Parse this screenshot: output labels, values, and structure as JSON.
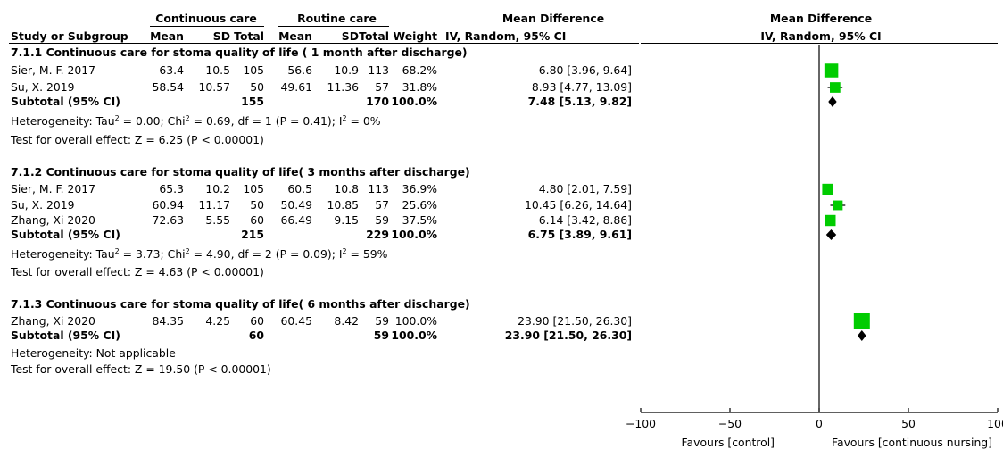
{
  "header": {
    "group1": "Continuous care",
    "group2": "Routine care",
    "md_text": "Mean Difference",
    "md_method": "IV, Random, 95% CI",
    "plot_md_text": "Mean Difference",
    "plot_md_method": "IV, Random, 95% CI",
    "study": "Study or Subgroup",
    "mean1": "Mean",
    "sd1": "SD",
    "total1": "Total",
    "mean2": "Mean",
    "sd2": "SD",
    "total2": "Total",
    "weight": "Weight"
  },
  "groups": [
    {
      "title": "7.1.1 Continuous care for stoma quality of life ( 1 month after discharge)",
      "studies": [
        {
          "name": "Sier, M. F. 2017",
          "mean1": "63.4",
          "sd1": "10.5",
          "total1": "105",
          "mean2": "56.6",
          "sd2": "10.9",
          "total2": "113",
          "weight": "68.2%",
          "ci": "6.80 [3.96, 9.64]"
        },
        {
          "name": "Su, X. 2019",
          "mean1": "58.54",
          "sd1": "10.57",
          "total1": "50",
          "mean2": "49.61",
          "sd2": "11.36",
          "total2": "57",
          "weight": "31.8%",
          "ci": "8.93 [4.77, 13.09]"
        }
      ],
      "subtotal": {
        "label": "Subtotal (95% CI)",
        "total1": "155",
        "total2": "170",
        "weight": "100.0%",
        "ci": "7.48 [5.13, 9.82]"
      },
      "heterogeneity": {
        "pre": "Heterogeneity: Tau",
        "a": " = 0.00; Chi",
        "b": " = 0.69, df = 1 (P = 0.41); I",
        "c": " = 0%",
        "sup": "2"
      },
      "overall": "Test for overall effect: Z = 6.25 (P < 0.00001)"
    },
    {
      "title": "7.1.2 Continuous care for stoma quality of life( 3 months after discharge)",
      "studies": [
        {
          "name": "Sier, M. F. 2017",
          "mean1": "65.3",
          "sd1": "10.2",
          "total1": "105",
          "mean2": "60.5",
          "sd2": "10.8",
          "total2": "113",
          "weight": "36.9%",
          "ci": "4.80 [2.01, 7.59]"
        },
        {
          "name": "Su, X. 2019",
          "mean1": "60.94",
          "sd1": "11.17",
          "total1": "50",
          "mean2": "50.49",
          "sd2": "10.85",
          "total2": "57",
          "weight": "25.6%",
          "ci": "10.45 [6.26, 14.64]"
        },
        {
          "name": "Zhang, Xi 2020",
          "mean1": "72.63",
          "sd1": "5.55",
          "total1": "60",
          "mean2": "66.49",
          "sd2": "9.15",
          "total2": "59",
          "weight": "37.5%",
          "ci": "6.14 [3.42, 8.86]"
        }
      ],
      "subtotal": {
        "label": "Subtotal (95% CI)",
        "total1": "215",
        "total2": "229",
        "weight": "100.0%",
        "ci": "6.75 [3.89, 9.61]"
      },
      "heterogeneity": {
        "pre": "Heterogeneity: Tau",
        "a": " = 3.73; Chi",
        "b": " = 4.90, df = 2 (P = 0.09); I",
        "c": " = 59%",
        "sup": "2"
      },
      "overall": "Test for overall effect: Z = 4.63 (P < 0.00001)"
    },
    {
      "title": "7.1.3 Continuous care for stoma quality of life( 6 months after discharge)",
      "studies": [
        {
          "name": "Zhang, Xi 2020",
          "mean1": "84.35",
          "sd1": "4.25",
          "total1": "60",
          "mean2": "60.45",
          "sd2": "8.42",
          "total2": "59",
          "weight": "100.0%",
          "ci": "23.90 [21.50, 26.30]"
        }
      ],
      "subtotal": {
        "label": "Subtotal (95% CI)",
        "total1": "60",
        "total2": "59",
        "weight": "100.0%",
        "ci": "23.90 [21.50, 26.30]"
      },
      "heterogeneity_text": "Heterogeneity: Not applicable",
      "overall": "Test for overall effect: Z = 19.50 (P < 0.00001)"
    }
  ],
  "chart_data": {
    "type": "forest",
    "xlim": [
      -100,
      100
    ],
    "xticks": [
      -100,
      -50,
      0,
      50,
      100
    ],
    "xtick_labels": [
      "−100",
      "−50",
      "0",
      "50",
      "100"
    ],
    "favours_left": "Favours [control]",
    "favours_right": "Favours [continuous nursing]",
    "marker_color": "#00cc00",
    "diamond_color": "#000000",
    "studies": [
      {
        "group": "7.1.1",
        "name": "Sier, M. F. 2017",
        "md": 6.8,
        "lo": 3.96,
        "hi": 9.64,
        "weight": 68.2
      },
      {
        "group": "7.1.1",
        "name": "Su, X. 2019",
        "md": 8.93,
        "lo": 4.77,
        "hi": 13.09,
        "weight": 31.8
      },
      {
        "group": "7.1.2",
        "name": "Sier, M. F. 2017",
        "md": 4.8,
        "lo": 2.01,
        "hi": 7.59,
        "weight": 36.9
      },
      {
        "group": "7.1.2",
        "name": "Su, X. 2019",
        "md": 10.45,
        "lo": 6.26,
        "hi": 14.64,
        "weight": 25.6
      },
      {
        "group": "7.1.2",
        "name": "Zhang, Xi 2020",
        "md": 6.14,
        "lo": 3.42,
        "hi": 8.86,
        "weight": 37.5
      },
      {
        "group": "7.1.3",
        "name": "Zhang, Xi 2020",
        "md": 23.9,
        "lo": 21.5,
        "hi": 26.3,
        "weight": 100.0
      }
    ],
    "subtotals": [
      {
        "group": "7.1.1",
        "md": 7.48,
        "lo": 5.13,
        "hi": 9.82
      },
      {
        "group": "7.1.2",
        "md": 6.75,
        "lo": 3.89,
        "hi": 9.61
      },
      {
        "group": "7.1.3",
        "md": 23.9,
        "lo": 21.5,
        "hi": 26.3
      }
    ]
  }
}
